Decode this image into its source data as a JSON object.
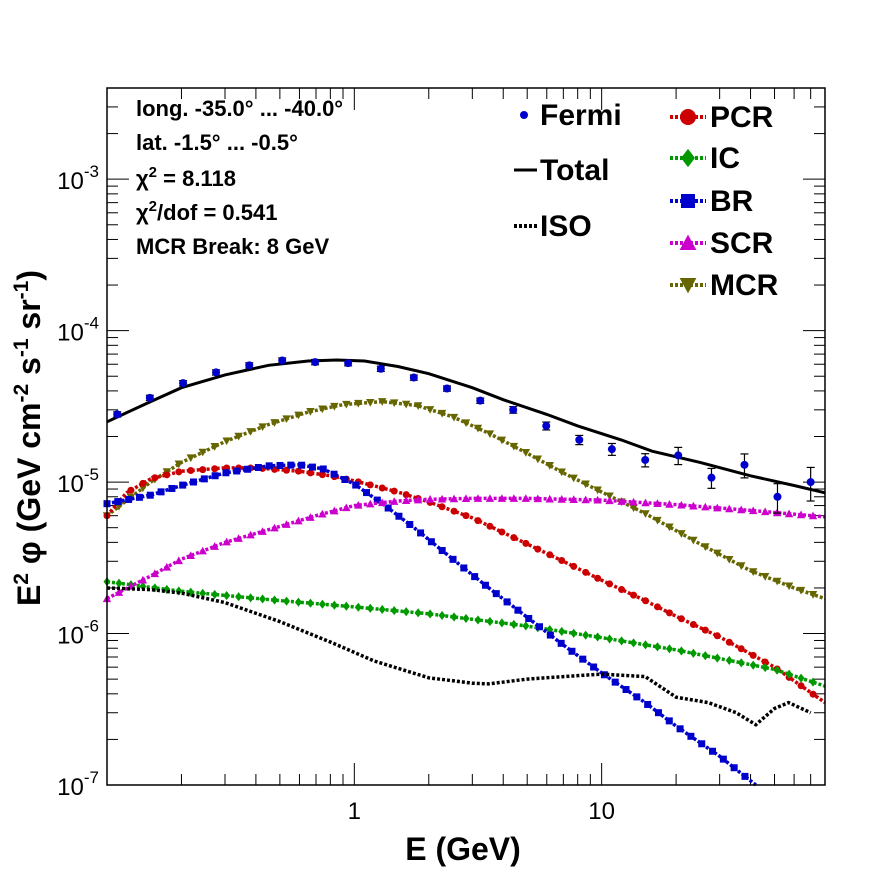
{
  "chart_data": {
    "type": "line",
    "xlabel": "E (GeV)",
    "ylabel_parts": [
      "E",
      "2",
      " φ (GeV cm",
      "-2",
      " s",
      "-1",
      " sr",
      "-1",
      ")"
    ],
    "x_scale": "log",
    "y_scale": "log",
    "xlim": [
      0.1,
      80
    ],
    "ylim": [
      1e-07,
      0.004
    ],
    "x_ticks": [
      {
        "value": 1,
        "label": "1"
      },
      {
        "value": 10,
        "label": "10"
      }
    ],
    "y_ticks": [
      {
        "value": 1e-07,
        "base": "10",
        "exp": "-7"
      },
      {
        "value": 1e-06,
        "base": "10",
        "exp": "-6"
      },
      {
        "value": 1e-05,
        "base": "10",
        "exp": "-5"
      },
      {
        "value": 0.0001,
        "base": "10",
        "exp": "-4"
      },
      {
        "value": 0.001,
        "base": "10",
        "exp": "-3"
      }
    ],
    "annotations": {
      "longitude": "long. -35.0° ... -40.0°",
      "latitude": "lat. -1.5° ... -0.5°",
      "chi2_sym": "χ",
      "chi2_exp": "2",
      "chi2_rest": " = 8.118",
      "chi2dof_sym": "χ",
      "chi2dof_exp": "2",
      "chi2dof_rest": "/dof = 0.541",
      "break": "MCR Break:  8 GeV"
    },
    "fermi": {
      "name": "Fermi",
      "color": "#0000cc",
      "x": [
        0.11,
        0.149,
        0.203,
        0.276,
        0.376,
        0.511,
        0.694,
        0.944,
        1.28,
        1.74,
        2.37,
        3.23,
        4.39,
        5.97,
        8.12,
        11.0,
        15.0,
        20.4,
        27.8,
        37.8,
        51.4,
        70.0
      ],
      "y": [
        2.8e-05,
        3.6e-05,
        4.5e-05,
        5.3e-05,
        5.9e-05,
        6.35e-05,
        6.2e-05,
        6.1e-05,
        5.6e-05,
        4.9e-05,
        4.15e-05,
        3.45e-05,
        3e-05,
        2.35e-05,
        1.9e-05,
        1.65e-05,
        1.4e-05,
        1.5e-05,
        1.07e-05,
        1.3e-05,
        8e-06,
        1e-05
      ],
      "err": [
        0.04,
        0.04,
        0.04,
        0.04,
        0.04,
        0.04,
        0.04,
        0.04,
        0.04,
        0.04,
        0.04,
        0.04,
        0.05,
        0.06,
        0.07,
        0.09,
        0.1,
        0.13,
        0.15,
        0.18,
        0.22,
        0.25
      ]
    },
    "series": [
      {
        "name": "Total",
        "color": "#000000",
        "style": "solid",
        "marker": "none",
        "x": [
          0.1,
          0.15,
          0.2,
          0.3,
          0.45,
          0.65,
          0.85,
          1.1,
          1.5,
          2.0,
          3.0,
          4.0,
          6.0,
          8.0,
          12.0,
          16.0,
          25.0,
          40.0,
          60.0,
          80.0
        ],
        "y": [
          2.5e-05,
          3.4e-05,
          4.2e-05,
          5.1e-05,
          5.9e-05,
          6.3e-05,
          6.4e-05,
          6.3e-05,
          5.8e-05,
          5.2e-05,
          4.2e-05,
          3.5e-05,
          2.8e-05,
          2.35e-05,
          1.9e-05,
          1.6e-05,
          1.35e-05,
          1.1e-05,
          9.5e-06,
          8.5e-06
        ]
      },
      {
        "name": "MCR",
        "color": "#666600",
        "style": "dotted",
        "marker": "triangle-down",
        "x": [
          0.1,
          0.15,
          0.2,
          0.3,
          0.45,
          0.65,
          0.9,
          1.3,
          1.8,
          2.5,
          3.5,
          5.0,
          7.0,
          10.0,
          15.0,
          25.0,
          40.0,
          60.0,
          80.0
        ],
        "y": [
          6e-06,
          1e-05,
          1.35e-05,
          1.85e-05,
          2.4e-05,
          2.9e-05,
          3.25e-05,
          3.4e-05,
          3.2e-05,
          2.7e-05,
          2.1e-05,
          1.55e-05,
          1.15e-05,
          8.6e-06,
          6.2e-06,
          3.9e-06,
          2.6e-06,
          2e-06,
          1.7e-06
        ]
      },
      {
        "name": "PCR",
        "color": "#cc0000",
        "style": "dotted",
        "marker": "circle",
        "x": [
          0.1,
          0.12,
          0.15,
          0.2,
          0.3,
          0.4,
          0.6,
          0.8,
          1.0,
          1.5,
          2.0,
          3.0,
          5.0,
          7.0,
          10.0,
          15.0,
          20.0,
          30.0,
          50.0,
          80.0
        ],
        "y": [
          6e-06,
          8.5e-06,
          1.05e-05,
          1.18e-05,
          1.24e-05,
          1.24e-05,
          1.18e-05,
          1.1e-05,
          1.02e-05,
          8.6e-06,
          7.4e-06,
          5.8e-06,
          3.9e-06,
          3e-06,
          2.25e-06,
          1.65e-06,
          1.3e-06,
          9.5e-07,
          6e-07,
          3.5e-07
        ]
      },
      {
        "name": "IC",
        "color": "#009900",
        "style": "dotted",
        "marker": "diamond",
        "x": [
          0.1,
          0.2,
          0.5,
          1.0,
          2.0,
          5.0,
          10.0,
          20.0,
          50.0,
          80.0
        ],
        "y": [
          2.2e-06,
          1.9e-06,
          1.65e-06,
          1.5e-06,
          1.35e-06,
          1.12e-06,
          9.4e-07,
          7.8e-07,
          5.8e-07,
          4.5e-07
        ]
      },
      {
        "name": "BR",
        "color": "#0000cc",
        "style": "dotted",
        "marker": "square",
        "x": [
          0.1,
          0.15,
          0.2,
          0.3,
          0.45,
          0.6,
          0.75,
          1.0,
          1.3,
          1.8,
          2.5,
          3.5,
          5.0,
          7.0,
          10.0,
          15.0,
          20.0,
          30.0,
          42.0
        ],
        "y": [
          7.2e-06,
          8.2e-06,
          9.5e-06,
          1.15e-05,
          1.28e-05,
          1.3e-05,
          1.22e-05,
          9.7e-06,
          7.2e-06,
          4.8e-06,
          3.1e-06,
          2e-06,
          1.28e-06,
          8.4e-07,
          5.5e-07,
          3.5e-07,
          2.45e-07,
          1.55e-07,
          1e-07
        ]
      },
      {
        "name": "SCR",
        "color": "#cc00cc",
        "style": "dotted",
        "marker": "triangle-up",
        "x": [
          0.1,
          0.15,
          0.2,
          0.3,
          0.5,
          0.7,
          1.0,
          1.5,
          2.0,
          3.0,
          5.0,
          10.0,
          20.0,
          40.0,
          80.0
        ],
        "y": [
          1.7e-06,
          2.4e-06,
          3.1e-06,
          4e-06,
          5.1e-06,
          6e-06,
          7e-06,
          7.5e-06,
          7.7e-06,
          7.8e-06,
          7.8e-06,
          7.6e-06,
          7.1e-06,
          6.5e-06,
          5.9e-06
        ]
      },
      {
        "name": "ISO",
        "color": "#000000",
        "style": "dotted",
        "marker": "none",
        "x": [
          0.1,
          0.15,
          0.2,
          0.3,
          0.5,
          0.8,
          1.2,
          2.0,
          3.0,
          3.5,
          5.0,
          7.0,
          10.0,
          15.0,
          20.0,
          27.0,
          35.0,
          42.0,
          50.0,
          57.0,
          70.0
        ],
        "y": [
          2e-06,
          1.95e-06,
          1.85e-06,
          1.6e-06,
          1.2e-06,
          8.8e-07,
          6.6e-07,
          5.1e-07,
          4.7e-07,
          4.65e-07,
          5e-07,
          5.2e-07,
          5.4e-07,
          5.2e-07,
          3.8e-07,
          3.5e-07,
          3e-07,
          2.5e-07,
          3.2e-07,
          3.5e-07,
          3e-07
        ]
      }
    ],
    "legend": {
      "left": [
        {
          "label": "Fermi",
          "symbol": "point",
          "color": "#0000cc"
        },
        {
          "label": "Total",
          "symbol": "solid",
          "color": "#000000"
        },
        {
          "label": "ISO",
          "symbol": "dotted",
          "color": "#000000"
        }
      ],
      "right": [
        {
          "label": "PCR",
          "symbol": "circle",
          "color": "#cc0000"
        },
        {
          "label": "IC",
          "symbol": "diamond",
          "color": "#009900"
        },
        {
          "label": "BR",
          "symbol": "square",
          "color": "#0000cc"
        },
        {
          "label": "SCR",
          "symbol": "triangle-up",
          "color": "#cc00cc"
        },
        {
          "label": "MCR",
          "symbol": "triangle-down",
          "color": "#666600"
        }
      ]
    }
  }
}
